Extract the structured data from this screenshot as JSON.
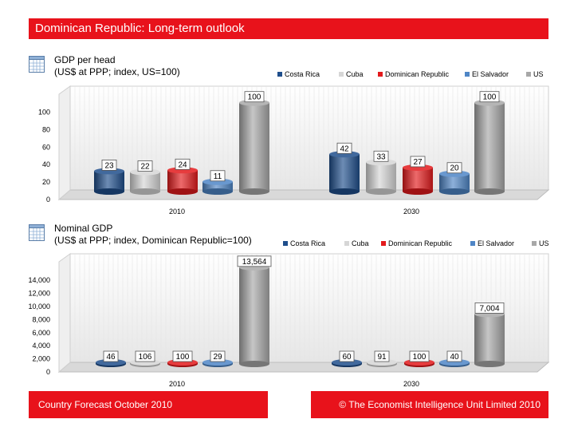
{
  "header": {
    "title": "Dominican Republic: Long-term outlook"
  },
  "footer": {
    "left": "Country Forecast October 2010",
    "right": "© The Economist Intelligence Unit Limited 2010"
  },
  "colors": {
    "Costa Rica": "#1f4e8c",
    "Cuba": "#d6d6d6",
    "Dominican Republic": "#e31a1c",
    "El Salvador": "#4f86c6",
    "US": "#a8a8a8"
  },
  "chart_data": [
    {
      "type": "bar",
      "title": "GDP per head",
      "subtitle": "(US$ at PPP; index, US=100)",
      "categories": [
        "2010",
        "2030"
      ],
      "series": [
        {
          "name": "Costa Rica",
          "values": [
            23,
            42
          ]
        },
        {
          "name": "Cuba",
          "values": [
            22,
            33
          ]
        },
        {
          "name": "Dominican Republic",
          "values": [
            24,
            27
          ]
        },
        {
          "name": "El Salvador",
          "values": [
            11,
            20
          ]
        },
        {
          "name": "US",
          "values": [
            100,
            100
          ]
        }
      ],
      "data_labels": [
        [
          "23",
          "22",
          "24",
          "11",
          "100"
        ],
        [
          "42",
          "33",
          "27",
          "20",
          "100"
        ]
      ],
      "yticks": [
        "0",
        "20",
        "40",
        "60",
        "80",
        "100"
      ],
      "ylim": [
        0,
        115
      ],
      "legend": "top",
      "grid": true
    },
    {
      "type": "bar",
      "title": "Nominal GDP",
      "subtitle": "(US$ at PPP; index, Dominican Republic=100)",
      "categories": [
        "2010",
        "2030"
      ],
      "series": [
        {
          "name": "Costa Rica",
          "values": [
            46,
            60
          ]
        },
        {
          "name": "Cuba",
          "values": [
            106,
            91
          ]
        },
        {
          "name": "Dominican Republic",
          "values": [
            100,
            100
          ]
        },
        {
          "name": "El Salvador",
          "values": [
            29,
            40
          ]
        },
        {
          "name": "US",
          "values": [
            13564,
            7004
          ]
        }
      ],
      "data_labels": [
        [
          "46",
          "106",
          "100",
          "29",
          "13,564"
        ],
        [
          "60",
          "91",
          "100",
          "40",
          "7,004"
        ]
      ],
      "yticks": [
        "0",
        "2,000",
        "4,000",
        "6,000",
        "8,000",
        "10,000",
        "12,000",
        "14,000"
      ],
      "ylim": [
        0,
        15000
      ],
      "legend": "top",
      "grid": true
    }
  ]
}
